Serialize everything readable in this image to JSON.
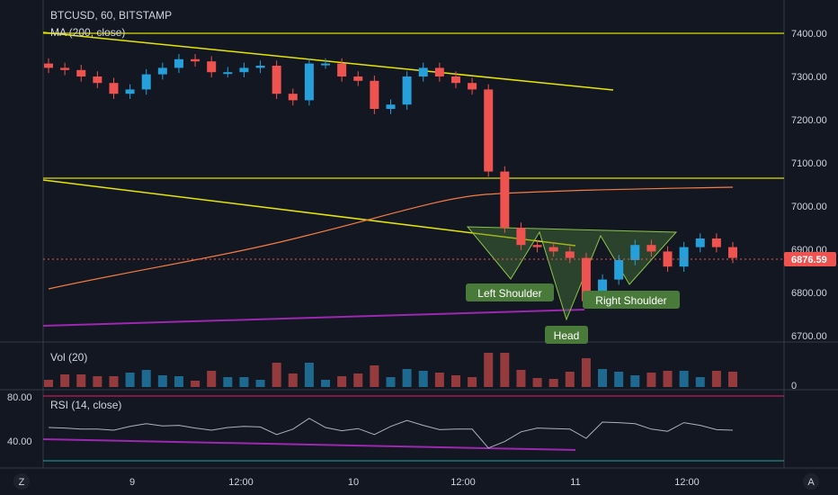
{
  "header": {
    "symbol": "BTCUSD, 60, BITSTAMP",
    "ma_label": "MA (200, close)"
  },
  "volume_pane": {
    "label": "Vol (20)",
    "zero_label": "0"
  },
  "rsi_pane": {
    "label": "RSI (14, close)",
    "levels": [
      "80.00",
      "40.00"
    ]
  },
  "price_axis": {
    "ticks": [
      "7400.00",
      "7300.00",
      "7200.00",
      "7100.00",
      "7000.00",
      "6900.00",
      "6800.00",
      "6700.00"
    ]
  },
  "time_axis": {
    "ticks": [
      "9",
      "12:00",
      "10",
      "12:00",
      "11",
      "12:00"
    ]
  },
  "last_price": "6876.59",
  "annotations": {
    "left_shoulder": "Left Shoulder",
    "head": "Head",
    "right_shoulder": "Right Shoulder"
  },
  "corner_buttons": {
    "left": "Z",
    "right": "A"
  },
  "colors": {
    "background": "#131722",
    "up": "#26a0da",
    "down": "#ef5350",
    "trendline": "#e6e600",
    "support": "#9c27b0",
    "ma": "#f57c45",
    "pattern_fill": "#4a7a3a",
    "label_bg": "#4a7a3a"
  },
  "chart_data": {
    "type": "candlestick",
    "title": "BTCUSD, 60, BITSTAMP",
    "ylim": [
      6700,
      7400
    ],
    "indicators": [
      "MA (200, close)",
      "Vol (20)",
      "RSI (14, close)"
    ],
    "horizontal_levels": [
      7400,
      7065
    ],
    "last_price": 6876.59,
    "series": [
      {
        "name": "price (approx. close)",
        "values": [
          7320,
          7315,
          7300,
          7285,
          7260,
          7270,
          7305,
          7320,
          7340,
          7335,
          7310,
          7310,
          7320,
          7325,
          7260,
          7245,
          7330,
          7330,
          7300,
          7290,
          7225,
          7235,
          7300,
          7320,
          7300,
          7285,
          7270,
          7080,
          6950,
          6910,
          6905,
          6895,
          6880,
          6780,
          6830,
          6875,
          6910,
          6895,
          6860,
          6905,
          6925,
          6905,
          6880
        ]
      }
    ]
  }
}
